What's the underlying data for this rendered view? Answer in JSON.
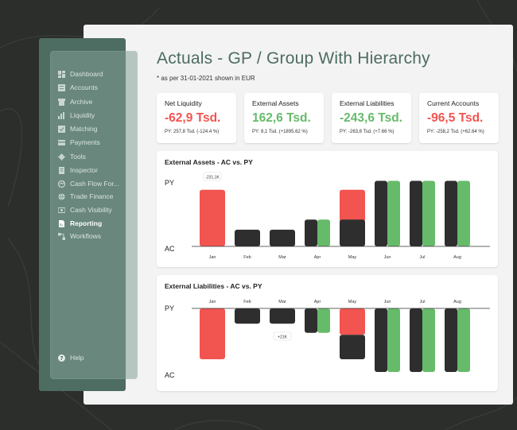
{
  "sidebar": {
    "items": [
      {
        "label": "Dashboard",
        "icon": "dashboard-icon"
      },
      {
        "label": "Accounts",
        "icon": "accounts-icon"
      },
      {
        "label": "Archive",
        "icon": "archive-icon"
      },
      {
        "label": "Liquidity",
        "icon": "liquidity-icon"
      },
      {
        "label": "Matching",
        "icon": "matching-icon"
      },
      {
        "label": "Payments",
        "icon": "payments-icon"
      },
      {
        "label": "Tools",
        "icon": "gear-icon"
      },
      {
        "label": "Inspector",
        "icon": "inspector-icon"
      },
      {
        "label": "Cash Flow For...",
        "icon": "cash-flow-icon"
      },
      {
        "label": "Trade Finance",
        "icon": "globe-icon"
      },
      {
        "label": "Cash Visibility",
        "icon": "eye-icon"
      },
      {
        "label": "Reporting",
        "icon": "report-icon"
      },
      {
        "label": "Workflows",
        "icon": "workflow-icon"
      }
    ],
    "active": "Reporting",
    "help": "Help"
  },
  "header": {
    "title": "Actuals - GP / Group With Hierarchy",
    "subtitle": "* as per 31-01-2021 shown in EUR"
  },
  "kpis": [
    {
      "label": "Net Liquidity",
      "value": "-62,9 Tsd.",
      "py": "PY: 257,8 Tsd. (-124.4 %)",
      "status": "negative"
    },
    {
      "label": "External Assets",
      "value": "162,6 Tsd.",
      "py": "PY: 8,1 Tsd. (+1895.62 %)",
      "status": "positive"
    },
    {
      "label": "External Liabilities",
      "value": "-243,6 Tsd.",
      "py": "PY: -263,8 Tsd. (+7.66 %)",
      "status": "positive"
    },
    {
      "label": "Current Accounts",
      "value": "-96,5 Tsd.",
      "py": "PY: -258,2 Tsd. (+62.64 %)",
      "status": "negative"
    }
  ],
  "colors": {
    "accent": "#4d6c62",
    "negative": "#f25450",
    "positive": "#66bb6a",
    "dark": "#2e2e2e"
  },
  "chart_data": [
    {
      "type": "bar",
      "title": "External Assets - AC vs. PY",
      "categories": [
        "Jan",
        "Feb",
        "Mar",
        "Apr",
        "May",
        "Jun",
        "Jul",
        "Aug"
      ],
      "axis_labels": {
        "top": "PY",
        "bottom": "AC"
      },
      "series": [
        {
          "name": "AC",
          "values": [
            0,
            28,
            28,
            45,
            45,
            110,
            110,
            110
          ]
        },
        {
          "name": "PY",
          "values": [
            95,
            0,
            0,
            45,
            95,
            110,
            110,
            110
          ]
        }
      ],
      "annotations": [
        {
          "category": "Jan",
          "text": "-231,1K"
        }
      ]
    },
    {
      "type": "bar",
      "title": "External Liabilities - AC vs. PY",
      "categories": [
        "Jan",
        "Feb",
        "Mar",
        "Apr",
        "May",
        "Jun",
        "Jul",
        "Aug"
      ],
      "axis_labels": {
        "top": "PY",
        "bottom": "AC"
      },
      "series": [
        {
          "name": "AC",
          "values": [
            0,
            30,
            30,
            48,
            100,
            125,
            125,
            125
          ]
        },
        {
          "name": "PY",
          "values": [
            100,
            0,
            0,
            48,
            52,
            125,
            125,
            125
          ]
        }
      ],
      "annotations": [
        {
          "category": "Mar",
          "text": "+21K"
        }
      ]
    }
  ]
}
